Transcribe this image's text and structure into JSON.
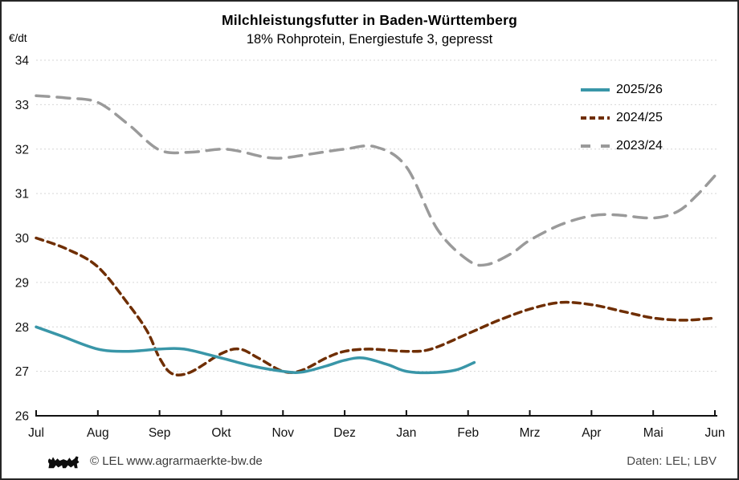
{
  "header": {
    "title": "Milchleistungsfutter in Baden-Württemberg",
    "subtitle": "18% Rohprotein, Energiestufe 3, gepresst"
  },
  "footer": {
    "logo_icon": "bw-lion-icon",
    "copyright": "© LEL www.agrarmaerkte-bw.de",
    "source": "Daten: LEL; LBV"
  },
  "chart_data": {
    "type": "line",
    "title": "Milchleistungsfutter in Baden-Württemberg",
    "subtitle": "18% Rohprotein, Energiestufe 3, gepresst",
    "ylabel": "€/dt",
    "xlabel": "",
    "x_months": [
      "Jul",
      "Aug",
      "Sep",
      "Okt",
      "Nov",
      "Dez",
      "Jan",
      "Feb",
      "Mrz",
      "Apr",
      "Mai",
      "Jun"
    ],
    "x_unit": "month_index_from_jul",
    "xlim": [
      0,
      11
    ],
    "ylim": [
      26,
      34
    ],
    "yticks": [
      26,
      27,
      28,
      29,
      30,
      31,
      32,
      33,
      34
    ],
    "grid": "horizontal-dashed",
    "legend_position": "top-right",
    "axis_color": "#111111",
    "grid_color": "#d6d6d6",
    "series": [
      {
        "name": "2025/26",
        "color": "#3996A8",
        "line_style": "solid",
        "points": [
          [
            0,
            28.0
          ],
          [
            0.4,
            27.8
          ],
          [
            1,
            27.5
          ],
          [
            1.5,
            27.45
          ],
          [
            2,
            27.5
          ],
          [
            2.4,
            27.5
          ],
          [
            3,
            27.3
          ],
          [
            3.5,
            27.12
          ],
          [
            4,
            27.0
          ],
          [
            4.3,
            26.98
          ],
          [
            4.7,
            27.12
          ],
          [
            5,
            27.25
          ],
          [
            5.3,
            27.3
          ],
          [
            5.7,
            27.15
          ],
          [
            6,
            27.0
          ],
          [
            6.4,
            26.97
          ],
          [
            6.8,
            27.03
          ],
          [
            7.1,
            27.2
          ]
        ]
      },
      {
        "name": "2024/25",
        "color": "#6F2E02",
        "line_style": "short-dash",
        "points": [
          [
            0,
            30.0
          ],
          [
            0.5,
            29.75
          ],
          [
            1,
            29.35
          ],
          [
            1.5,
            28.5
          ],
          [
            1.8,
            27.9
          ],
          [
            2,
            27.3
          ],
          [
            2.2,
            26.95
          ],
          [
            2.5,
            26.98
          ],
          [
            3,
            27.4
          ],
          [
            3.3,
            27.5
          ],
          [
            3.6,
            27.3
          ],
          [
            4,
            27.0
          ],
          [
            4.3,
            27.02
          ],
          [
            4.7,
            27.3
          ],
          [
            5,
            27.45
          ],
          [
            5.4,
            27.5
          ],
          [
            6,
            27.45
          ],
          [
            6.4,
            27.5
          ],
          [
            7,
            27.85
          ],
          [
            7.5,
            28.15
          ],
          [
            8,
            28.4
          ],
          [
            8.5,
            28.55
          ],
          [
            9,
            28.5
          ],
          [
            9.5,
            28.35
          ],
          [
            10,
            28.2
          ],
          [
            10.5,
            28.15
          ],
          [
            11,
            28.2
          ]
        ]
      },
      {
        "name": "2023/24",
        "color": "#9A9A9A",
        "line_style": "long-dash",
        "points": [
          [
            0,
            33.2
          ],
          [
            0.5,
            33.15
          ],
          [
            1,
            33.05
          ],
          [
            1.5,
            32.55
          ],
          [
            2,
            31.98
          ],
          [
            2.5,
            31.93
          ],
          [
            3,
            32.0
          ],
          [
            3.3,
            31.95
          ],
          [
            3.7,
            31.82
          ],
          [
            4,
            31.8
          ],
          [
            4.5,
            31.9
          ],
          [
            5,
            32.0
          ],
          [
            5.5,
            32.05
          ],
          [
            6,
            31.6
          ],
          [
            6.5,
            30.2
          ],
          [
            7,
            29.5
          ],
          [
            7.3,
            29.4
          ],
          [
            7.7,
            29.65
          ],
          [
            8,
            29.95
          ],
          [
            8.5,
            30.3
          ],
          [
            9,
            30.5
          ],
          [
            9.4,
            30.52
          ],
          [
            10,
            30.45
          ],
          [
            10.4,
            30.6
          ],
          [
            10.7,
            30.95
          ],
          [
            11,
            31.4
          ]
        ]
      }
    ]
  }
}
